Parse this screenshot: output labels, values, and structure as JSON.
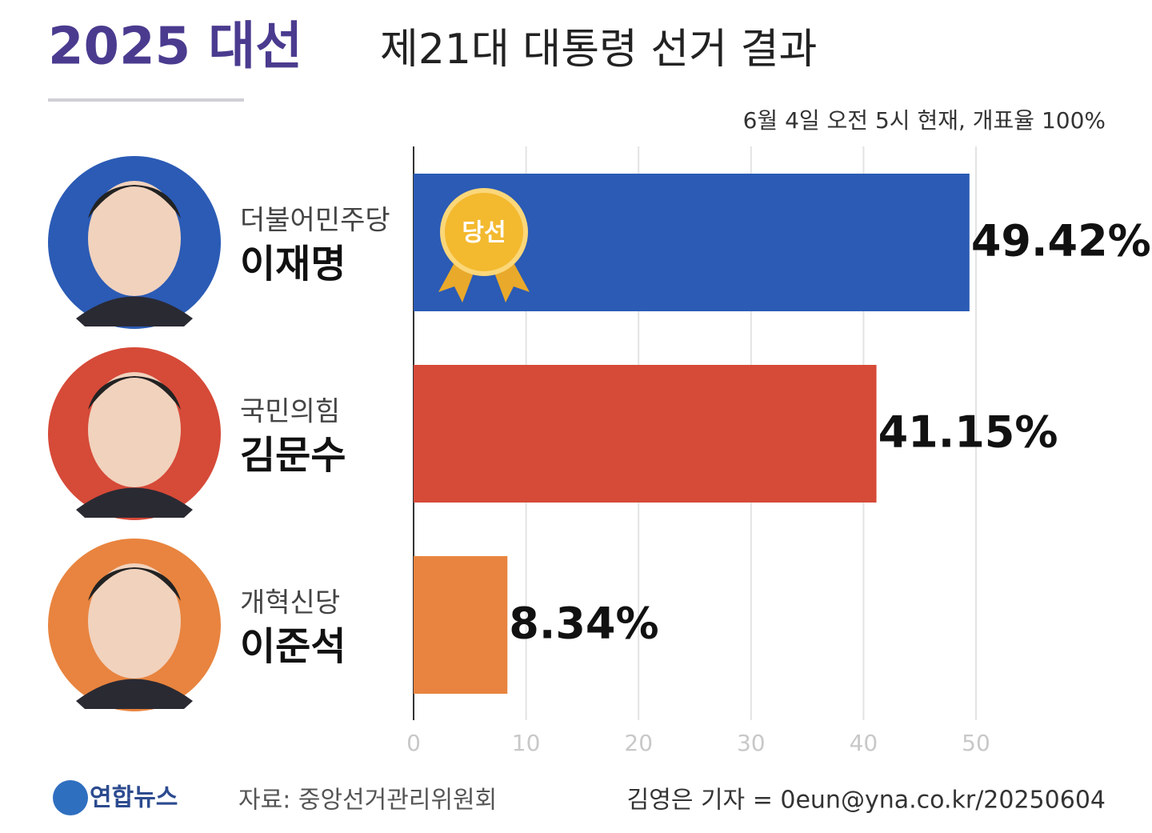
{
  "chart_data": {
    "type": "bar",
    "orientation": "horizontal",
    "title": "2025 대선",
    "subtitle": "제21대 대통령 선거 결과",
    "note": "6월 4일 오전 5시 현재, 개표율 100%",
    "categories": [
      "이재명",
      "김문수",
      "이준석"
    ],
    "parties": [
      "더불어민주당",
      "국민의힘",
      "개혁신당"
    ],
    "values": [
      49.42,
      41.15,
      8.34
    ],
    "value_labels": [
      "49.42%",
      "41.15%",
      "8.34%"
    ],
    "colors": [
      "#2b5bb5",
      "#d64a38",
      "#e8843f"
    ],
    "badge": "당선",
    "xlim": [
      0,
      50
    ],
    "xticks": [
      0,
      10,
      20,
      30,
      40,
      50
    ],
    "grid": true,
    "source": "자료: 중앙선거관리위원회",
    "logo": "연합뉴스",
    "credit": "김영은 기자 = 0eun@yna.co.kr/20250604"
  }
}
